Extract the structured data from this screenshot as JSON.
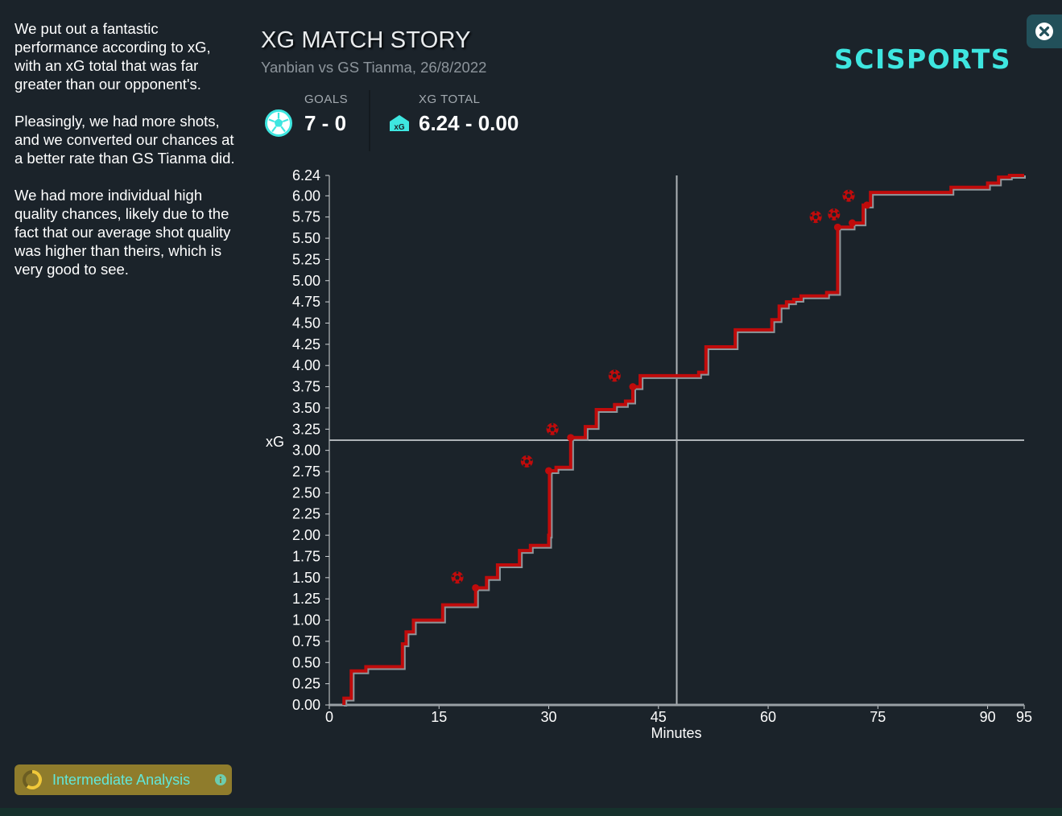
{
  "summary": {
    "paragraphs": [
      "We put out a fantastic performance according to xG, with an xG total that was far greater than our opponent's.",
      "Pleasingly, we had more shots, and we converted our chances at a better rate than GS Tianma did.",
      "We had more individual high quality chances, likely due to the fact that our average shot quality was higher than theirs, which is very good to see."
    ]
  },
  "header": {
    "title": "XG MATCH STORY",
    "subtitle": "Yanbian vs GS Tianma, 26/8/2022",
    "logo": "SCISPORTS"
  },
  "stats": {
    "goals_label": "GOALS",
    "goals_value": "7 - 0",
    "xg_label": "XG TOTAL",
    "xg_value": "6.24 - 0.00",
    "xg_badge": "xG"
  },
  "footer": {
    "analysis_label": "Intermediate Analysis"
  },
  "colors": {
    "team_line": "#c00b0b",
    "opponent_line": "#9aa0a5",
    "accent": "#3ee6e0",
    "background": "#1b232a"
  },
  "icons": {
    "goals": "soccer-ball-icon",
    "xg": "xg-badge-icon",
    "close": "close-icon",
    "info": "info-icon",
    "goal_marker": "goal-ball-marker"
  },
  "chart_data": {
    "type": "line",
    "xlabel": "Minutes",
    "ylabel": "xG",
    "xlim": [
      0,
      95
    ],
    "ylim": [
      0,
      6.24
    ],
    "x_ticks": [
      0,
      15,
      30,
      45,
      60,
      75,
      90,
      95
    ],
    "y_ticks": [
      0.0,
      0.25,
      0.5,
      0.75,
      1.0,
      1.25,
      1.5,
      1.75,
      2.0,
      2.25,
      2.5,
      2.75,
      3.0,
      3.25,
      3.5,
      3.75,
      4.0,
      4.25,
      4.5,
      4.75,
      5.0,
      5.25,
      5.5,
      5.75,
      6.0,
      6.24
    ],
    "reference_lines": {
      "x": 47.5,
      "y": 3.12
    },
    "grid": false,
    "series": [
      {
        "steps": [
          [
            2,
            0.0
          ],
          [
            2,
            0.08
          ],
          [
            3,
            0.08
          ],
          [
            3,
            0.4
          ],
          [
            5,
            0.4
          ],
          [
            5,
            0.45
          ],
          [
            10,
            0.45
          ],
          [
            10,
            0.72
          ],
          [
            10.5,
            0.72
          ],
          [
            10.5,
            0.86
          ],
          [
            11.5,
            0.86
          ],
          [
            11.5,
            1.0
          ],
          [
            15.5,
            1.0
          ],
          [
            15.5,
            1.18
          ],
          [
            20,
            1.18
          ],
          [
            20,
            1.38
          ],
          [
            21.5,
            1.38
          ],
          [
            21.5,
            1.5
          ],
          [
            23,
            1.5
          ],
          [
            23,
            1.65
          ],
          [
            26,
            1.65
          ],
          [
            26,
            1.82
          ],
          [
            27.5,
            1.82
          ],
          [
            27.5,
            1.88
          ],
          [
            30,
            1.88
          ],
          [
            30,
            2.0
          ],
          [
            30.1,
            2.0
          ],
          [
            30.1,
            2.76
          ],
          [
            31,
            2.76
          ],
          [
            31,
            2.8
          ],
          [
            33,
            2.8
          ],
          [
            33,
            3.15
          ],
          [
            35,
            3.15
          ],
          [
            35,
            3.28
          ],
          [
            36.5,
            3.28
          ],
          [
            36.5,
            3.48
          ],
          [
            39,
            3.48
          ],
          [
            39,
            3.54
          ],
          [
            40.5,
            3.54
          ],
          [
            40.5,
            3.58
          ],
          [
            41.5,
            3.58
          ],
          [
            41.5,
            3.75
          ],
          [
            42.5,
            3.75
          ],
          [
            42.5,
            3.88
          ],
          [
            50.5,
            3.88
          ],
          [
            50.5,
            3.92
          ],
          [
            51.5,
            3.92
          ],
          [
            51.5,
            4.22
          ],
          [
            55.5,
            4.22
          ],
          [
            55.5,
            4.42
          ],
          [
            60.5,
            4.42
          ],
          [
            60.5,
            4.54
          ],
          [
            61.5,
            4.54
          ],
          [
            61.5,
            4.7
          ],
          [
            62.5,
            4.7
          ],
          [
            62.5,
            4.75
          ],
          [
            63.5,
            4.75
          ],
          [
            63.5,
            4.78
          ],
          [
            64.5,
            4.78
          ],
          [
            64.5,
            4.82
          ],
          [
            68,
            4.82
          ],
          [
            68,
            4.86
          ],
          [
            69.5,
            4.86
          ],
          [
            69.5,
            5.63
          ],
          [
            71.5,
            5.63
          ],
          [
            71.5,
            5.68
          ],
          [
            73,
            5.68
          ],
          [
            73,
            5.89
          ],
          [
            74,
            5.89
          ],
          [
            74,
            6.04
          ],
          [
            85,
            6.04
          ],
          [
            85,
            6.1
          ],
          [
            90,
            6.1
          ],
          [
            90,
            6.15
          ],
          [
            91.5,
            6.15
          ],
          [
            91.5,
            6.22
          ],
          [
            93,
            6.22
          ],
          [
            93,
            6.24
          ],
          [
            95,
            6.24
          ]
        ]
      },
      {
        "steps": [
          [
            0,
            0.0
          ],
          [
            95,
            0.0
          ]
        ]
      }
    ],
    "shots": [
      [
        20,
        1.38
      ],
      [
        30,
        2.76
      ],
      [
        33,
        3.15
      ],
      [
        41.5,
        3.75
      ],
      [
        69.5,
        5.63
      ],
      [
        71.5,
        5.68
      ],
      [
        73.5,
        5.89
      ]
    ],
    "goals": [
      [
        17.5,
        1.5
      ],
      [
        27,
        2.87
      ],
      [
        30.5,
        3.25
      ],
      [
        39,
        3.88
      ],
      [
        66.5,
        5.75
      ],
      [
        69,
        5.78
      ],
      [
        71,
        6.0
      ]
    ]
  }
}
